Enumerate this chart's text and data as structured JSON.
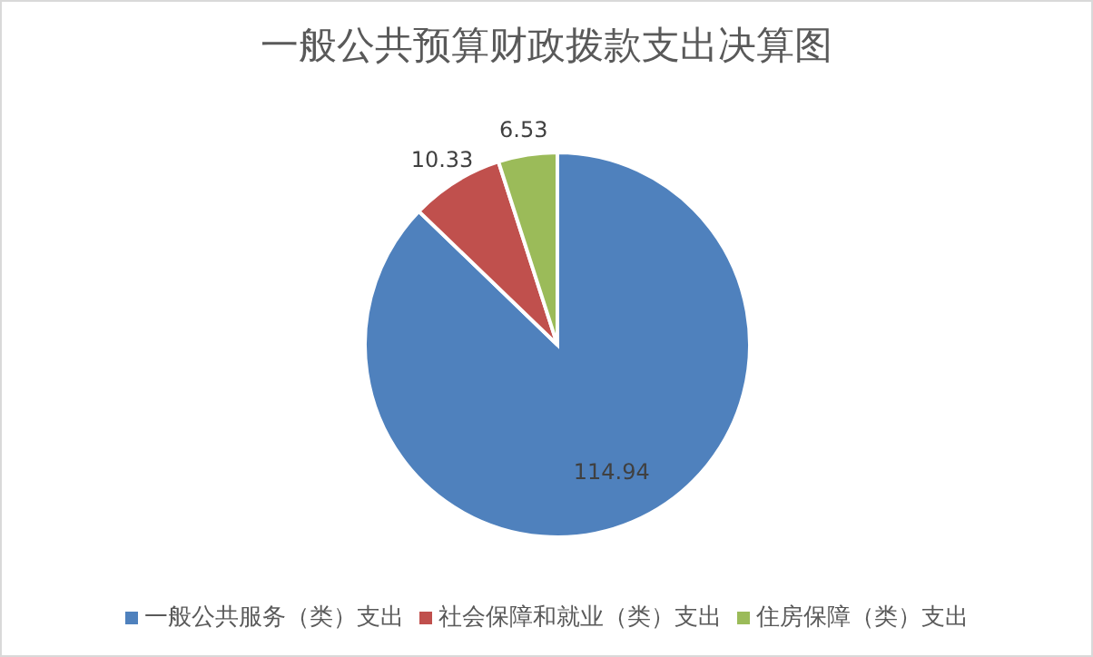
{
  "chart_data": {
    "type": "pie",
    "title": "一般公共预算财政拨款支出决算图",
    "categories": [
      "一般公共服务（类）支出",
      "社会保障和就业（类）支出",
      "住房保障（类）支出"
    ],
    "values": [
      114.94,
      10.33,
      6.53
    ],
    "colors": [
      "#4f81bd",
      "#c0504d",
      "#9bbb59"
    ],
    "data_labels": true,
    "legend": "bottom"
  }
}
